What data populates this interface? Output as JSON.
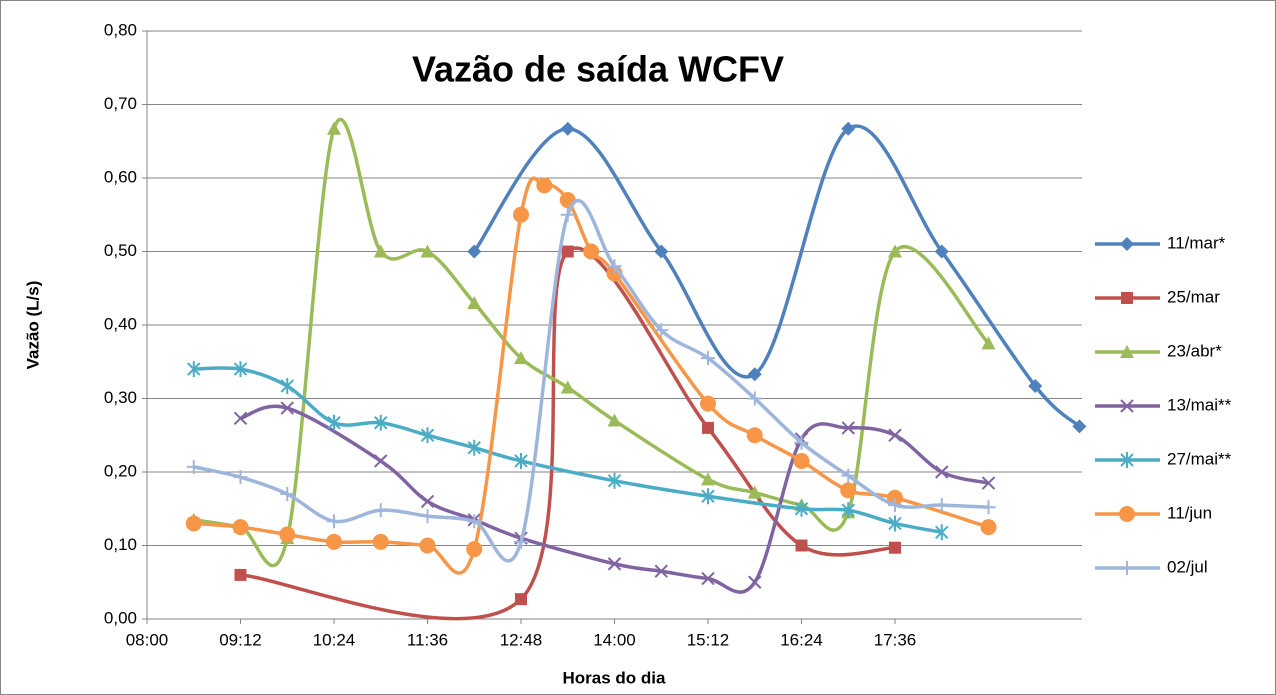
{
  "chart_data": {
    "type": "line",
    "title": "Vazão de saída WCFV",
    "x_label": "Horas do dia",
    "y_label": "Vazão (L/s)",
    "xlim": [
      480,
      1200
    ],
    "xticks": [
      {
        "value": 480,
        "label": "08:00"
      },
      {
        "value": 552,
        "label": "09:12"
      },
      {
        "value": 624,
        "label": "10:24"
      },
      {
        "value": 696,
        "label": "11:36"
      },
      {
        "value": 768,
        "label": "12:48"
      },
      {
        "value": 840,
        "label": "14:00"
      },
      {
        "value": 912,
        "label": "15:12"
      },
      {
        "value": 984,
        "label": "16:24"
      },
      {
        "value": 1056,
        "label": "17:36"
      }
    ],
    "ylim": [
      0,
      0.8
    ],
    "yticks": [
      {
        "value": 0,
        "label": "0,00"
      },
      {
        "value": 0.1,
        "label": "0,10"
      },
      {
        "value": 0.2,
        "label": "0,20"
      },
      {
        "value": 0.3,
        "label": "0,30"
      },
      {
        "value": 0.4,
        "label": "0,40"
      },
      {
        "value": 0.5,
        "label": "0,50"
      },
      {
        "value": 0.6,
        "label": "0,60"
      },
      {
        "value": 0.7,
        "label": "0,70"
      },
      {
        "value": 0.8,
        "label": "0,80"
      }
    ],
    "grid": true,
    "smooth": true,
    "legend": "right",
    "series": [
      {
        "name": "11/mar*",
        "color": "#4f81bd",
        "marker": "diamond",
        "x": [
          732,
          804,
          876,
          948,
          1020,
          1092,
          1164,
          1198
        ],
        "values": [
          0.5,
          0.667,
          0.5,
          0.333,
          0.667,
          0.5,
          0.317,
          0.262
        ]
      },
      {
        "name": "25/mar",
        "color": "#c0504d",
        "marker": "square",
        "x": [
          552,
          768,
          804,
          912,
          984,
          1056
        ],
        "values": [
          0.06,
          0.027,
          0.5,
          0.26,
          0.1,
          0.097
        ]
      },
      {
        "name": "23/abr*",
        "color": "#9bbb59",
        "marker": "triangle",
        "x": [
          516,
          552,
          588,
          624,
          660,
          696,
          732,
          768,
          804,
          840,
          912,
          948,
          984,
          1020,
          1056,
          1128
        ],
        "values": [
          0.135,
          0.125,
          0.11,
          0.667,
          0.5,
          0.5,
          0.43,
          0.355,
          0.315,
          0.27,
          0.19,
          0.172,
          0.155,
          0.145,
          0.5,
          0.375
        ]
      },
      {
        "name": "13/mai**",
        "color": "#8064a2",
        "marker": "x",
        "x": [
          552,
          588,
          660,
          696,
          732,
          768,
          840,
          876,
          912,
          948,
          984,
          1020,
          1056,
          1092,
          1128
        ],
        "values": [
          0.273,
          0.287,
          0.215,
          0.16,
          0.135,
          0.11,
          0.075,
          0.065,
          0.055,
          0.05,
          0.245,
          0.26,
          0.25,
          0.2,
          0.185
        ]
      },
      {
        "name": "27/mai**",
        "color": "#4bacc6",
        "marker": "star",
        "x": [
          516,
          552,
          588,
          624,
          660,
          696,
          732,
          768,
          840,
          912,
          984,
          1020,
          1056,
          1092
        ],
        "values": [
          0.34,
          0.34,
          0.317,
          0.267,
          0.267,
          0.25,
          0.233,
          0.215,
          0.188,
          0.167,
          0.15,
          0.148,
          0.13,
          0.118
        ]
      },
      {
        "name": "11/jun",
        "color": "#f79646",
        "marker": "circle",
        "x": [
          516,
          552,
          588,
          624,
          660,
          696,
          732,
          768,
          786,
          804,
          822,
          840,
          912,
          948,
          984,
          1020,
          1056,
          1128
        ],
        "values": [
          0.13,
          0.125,
          0.115,
          0.105,
          0.105,
          0.1,
          0.095,
          0.55,
          0.59,
          0.57,
          0.5,
          0.47,
          0.293,
          0.25,
          0.215,
          0.175,
          0.165,
          0.125
        ]
      },
      {
        "name": "02/jul",
        "color": "#9eb6dc",
        "marker": "plus",
        "x": [
          516,
          552,
          588,
          624,
          660,
          696,
          732,
          768,
          804,
          840,
          876,
          912,
          948,
          984,
          1020,
          1056,
          1092,
          1128
        ],
        "values": [
          0.207,
          0.193,
          0.17,
          0.133,
          0.148,
          0.14,
          0.133,
          0.105,
          0.55,
          0.48,
          0.393,
          0.355,
          0.3,
          0.24,
          0.195,
          0.155,
          0.155,
          0.152
        ]
      }
    ]
  }
}
